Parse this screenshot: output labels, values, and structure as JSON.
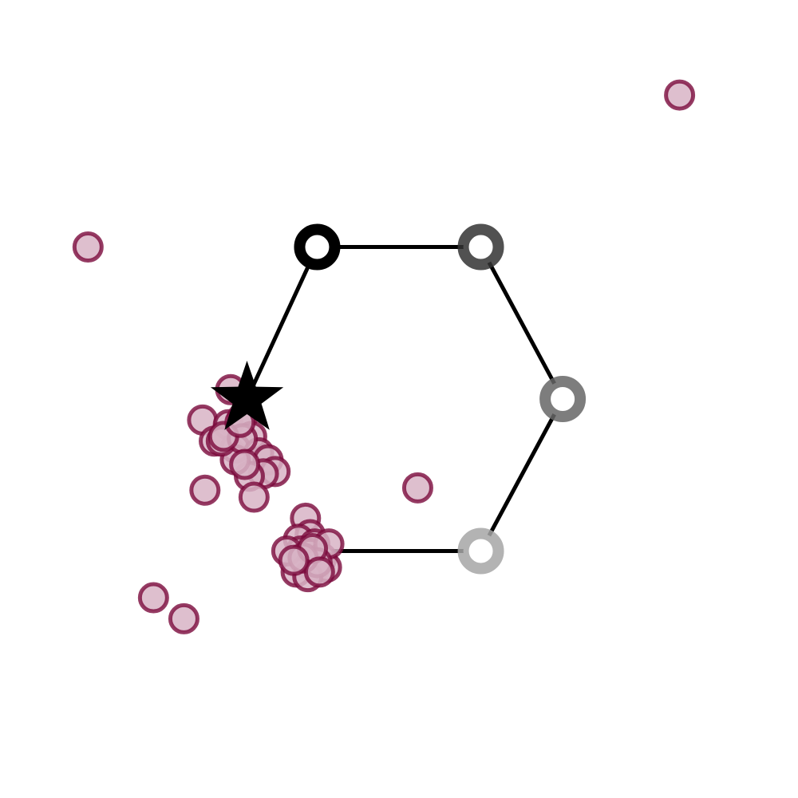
{
  "chart_data": {
    "type": "scatter",
    "title": "",
    "xlabel": "",
    "ylabel": "",
    "axes_visible": false,
    "grid": false,
    "xlim": [
      -1.7,
      1.7
    ],
    "ylim": [
      -1.7,
      1.7
    ],
    "hexagon": {
      "nodes": [
        {
          "name": "node-1",
          "x": -0.35,
          "y": 0.65,
          "ring_color": "#000000"
        },
        {
          "name": "node-2",
          "x": 0.35,
          "y": 0.65,
          "ring_color": "#333333"
        },
        {
          "name": "node-3",
          "x": 0.7,
          "y": 0.0,
          "ring_color": "#666666"
        },
        {
          "name": "node-4",
          "x": 0.35,
          "y": -0.65,
          "ring_color": "#a6a6a6"
        },
        {
          "name": "node-5",
          "x": -0.35,
          "y": -0.65,
          "ring_color": "#7a0a3c"
        },
        {
          "name": "node-6",
          "x": -0.65,
          "y": 0.0,
          "ring_color": "#000000"
        }
      ],
      "edge_color": "#000000"
    },
    "star": {
      "x": -0.65,
      "y": 0.0,
      "color": "#000000"
    },
    "series": [
      {
        "name": "samples",
        "fill": "#d8b4c6",
        "stroke": "#7a0a3c",
        "points": [
          {
            "x": 1.2,
            "y": 1.3
          },
          {
            "x": -1.33,
            "y": 0.65
          },
          {
            "x": -1.05,
            "y": -0.85
          },
          {
            "x": 0.08,
            "y": -0.38
          },
          {
            "x": -0.72,
            "y": 0.04
          },
          {
            "x": -0.84,
            "y": -0.09
          },
          {
            "x": -0.79,
            "y": -0.18
          },
          {
            "x": -0.73,
            "y": -0.11
          },
          {
            "x": -0.67,
            "y": -0.08
          },
          {
            "x": -0.63,
            "y": -0.16
          },
          {
            "x": -0.7,
            "y": -0.21
          },
          {
            "x": -0.6,
            "y": -0.23
          },
          {
            "x": -0.56,
            "y": -0.26
          },
          {
            "x": -0.53,
            "y": -0.31
          },
          {
            "x": -0.58,
            "y": -0.32
          },
          {
            "x": -0.64,
            "y": -0.33
          },
          {
            "x": -0.7,
            "y": -0.26
          },
          {
            "x": -0.76,
            "y": -0.18
          },
          {
            "x": -0.67,
            "y": -0.17
          },
          {
            "x": -0.66,
            "y": -0.28
          },
          {
            "x": -0.83,
            "y": -0.39
          },
          {
            "x": -0.62,
            "y": -0.42
          },
          {
            "x": -0.92,
            "y": -0.94
          },
          {
            "x": -0.75,
            "y": -0.16
          },
          {
            "x": -0.68,
            "y": -0.1
          },
          {
            "x": -0.4,
            "y": -0.51
          },
          {
            "x": -0.38,
            "y": -0.58
          },
          {
            "x": -0.43,
            "y": -0.6
          },
          {
            "x": -0.36,
            "y": -0.62
          },
          {
            "x": -0.42,
            "y": -0.65
          },
          {
            "x": -0.38,
            "y": -0.66
          },
          {
            "x": -0.33,
            "y": -0.68
          },
          {
            "x": -0.4,
            "y": -0.7
          },
          {
            "x": -0.36,
            "y": -0.72
          },
          {
            "x": -0.31,
            "y": -0.72
          },
          {
            "x": -0.44,
            "y": -0.74
          },
          {
            "x": -0.39,
            "y": -0.76
          },
          {
            "x": -0.3,
            "y": -0.62
          },
          {
            "x": -0.48,
            "y": -0.65
          },
          {
            "x": -0.35,
            "y": -0.7
          },
          {
            "x": -0.41,
            "y": -0.68
          },
          {
            "x": -0.37,
            "y": -0.64
          },
          {
            "x": -0.34,
            "y": -0.74
          },
          {
            "x": -0.45,
            "y": -0.69
          }
        ]
      }
    ]
  }
}
